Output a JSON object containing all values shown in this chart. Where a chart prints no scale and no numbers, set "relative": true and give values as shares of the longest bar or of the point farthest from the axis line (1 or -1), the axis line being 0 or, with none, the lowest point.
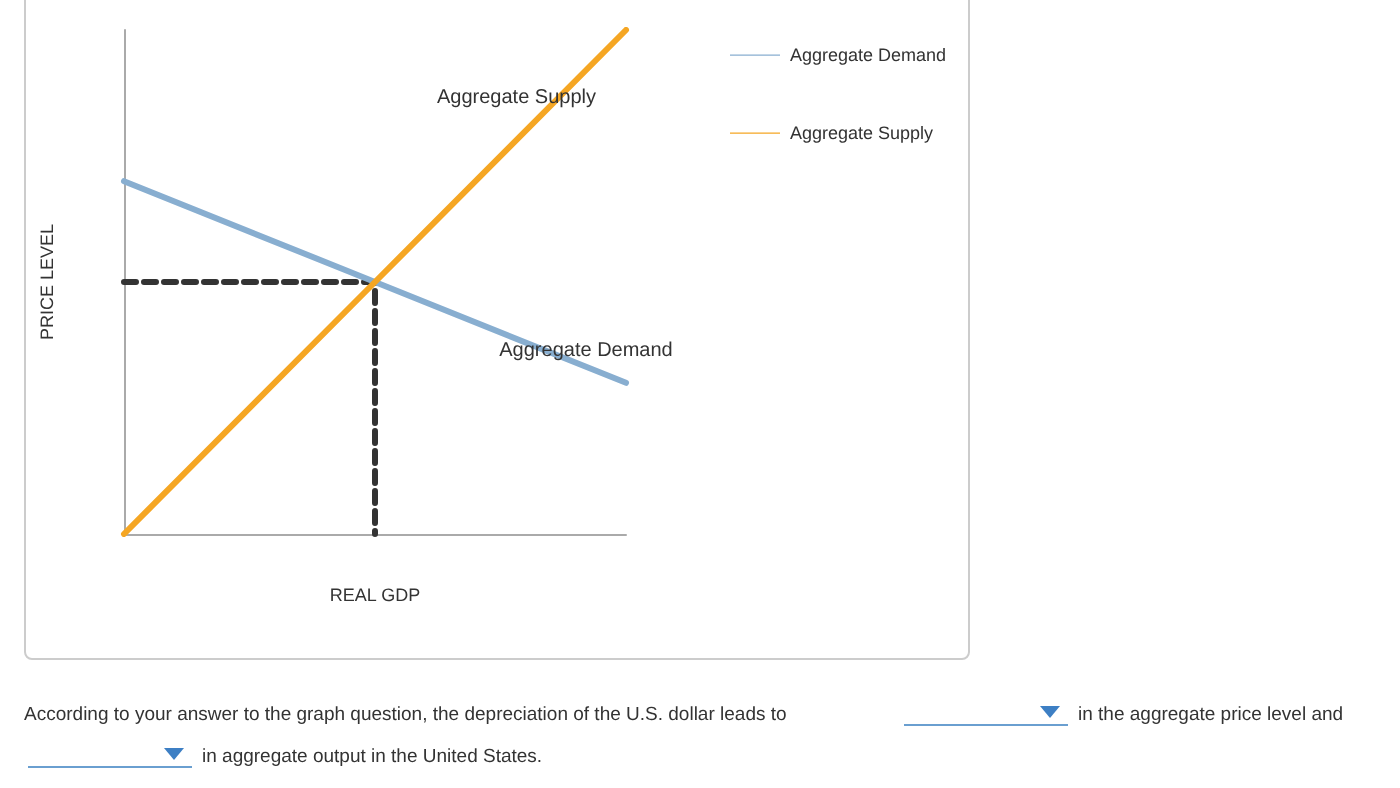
{
  "chart_data": {
    "type": "line",
    "relative": true,
    "xlabel": "REAL GDP",
    "ylabel": "PRICE LEVEL",
    "categories": [
      null,
      null,
      null
    ],
    "series": [
      {
        "name": "Aggregate Demand",
        "color": "#88aed0",
        "values": [
          0.7,
          0.5,
          0.3
        ]
      },
      {
        "name": "Aggregate Supply",
        "color": "#f5a623",
        "values": [
          0,
          0.5,
          1
        ]
      },
      {
        "type": "step",
        "color": "#333333",
        "line_style": "dashed",
        "values": [
          0.5,
          0,
          null
        ]
      }
    ],
    "legend": "top right",
    "grid": false,
    "marker": "none",
    "annotations": [
      "According to your answer to the graph question, the depreciation of the U.S. dollar leads to",
      "in the aggregate price level and",
      "in aggregate output in the United States."
    ]
  }
}
